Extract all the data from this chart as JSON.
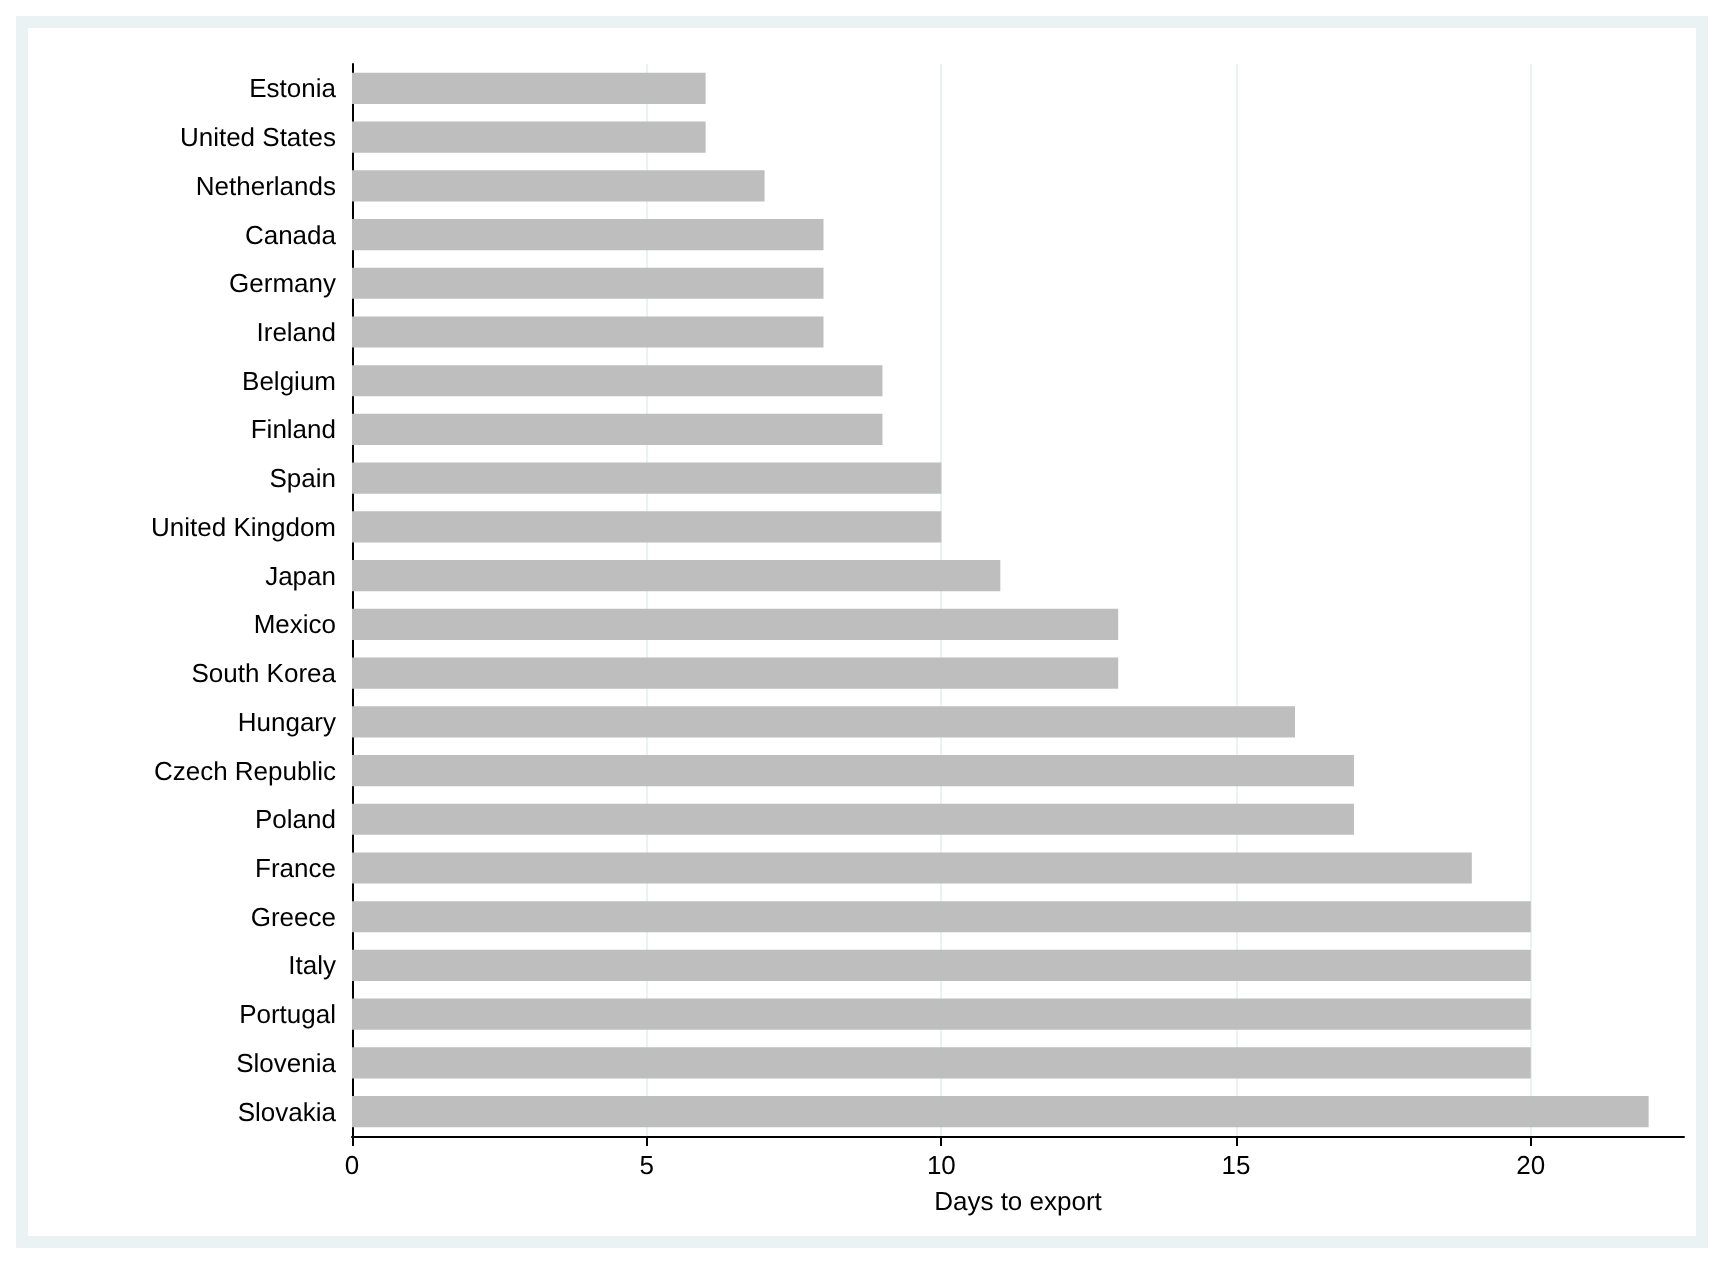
{
  "chart_data": {
    "type": "bar",
    "orientation": "horizontal",
    "xlabel": "Days to export",
    "categories": [
      "Estonia",
      "United States",
      "Netherlands",
      "Canada",
      "Germany",
      "Ireland",
      "Belgium",
      "Finland",
      "Spain",
      "United Kingdom",
      "Japan",
      "Mexico",
      "South Korea",
      "Hungary",
      "Czech Republic",
      "Poland",
      "France",
      "Greece",
      "Italy",
      "Portugal",
      "Slovenia",
      "Slovakia"
    ],
    "values": [
      6,
      6,
      7,
      8,
      8,
      8,
      9,
      9,
      10,
      10,
      11,
      13,
      13,
      16,
      17,
      17,
      19,
      20,
      20,
      20,
      20,
      22
    ],
    "color": "#bebebe",
    "xlim": [
      0,
      22.6
    ],
    "xticks": [
      0,
      5,
      10,
      15,
      20
    ],
    "grid": "x"
  }
}
